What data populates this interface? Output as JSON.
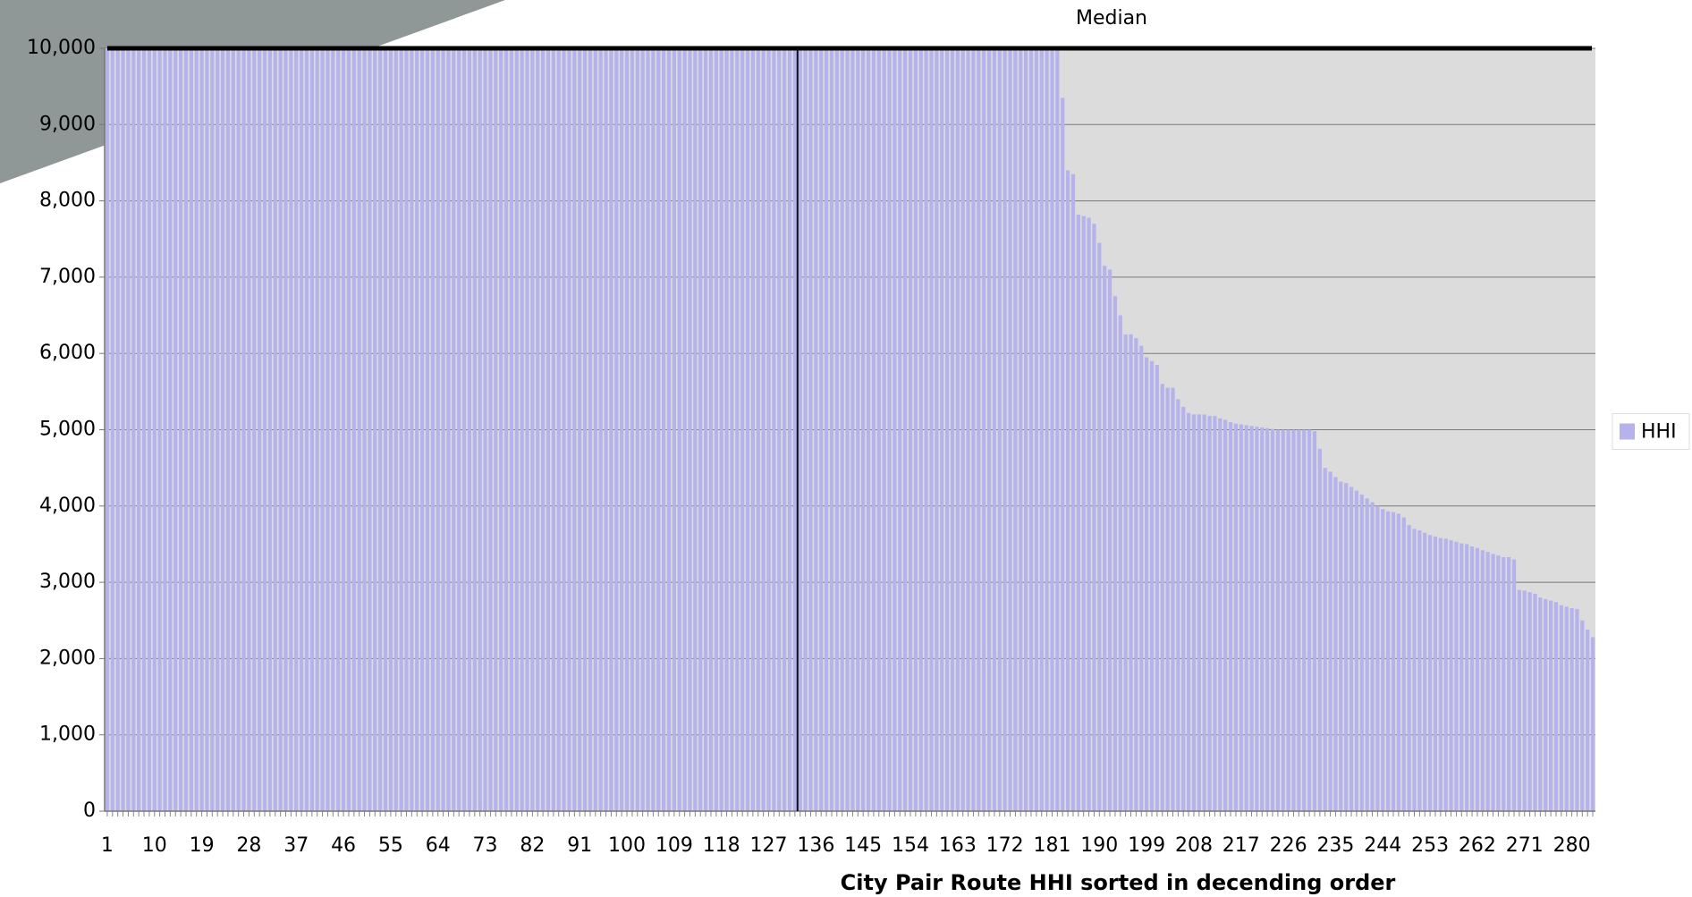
{
  "chart_data": {
    "type": "bar",
    "x_label": "City Pair Route HHI sorted in decending order",
    "categories": [
      1,
      null,
      null,
      null,
      null,
      null,
      null,
      null,
      null,
      10,
      null,
      null,
      null,
      null,
      null,
      null,
      null,
      null,
      19,
      null,
      null,
      null,
      null,
      null,
      null,
      null,
      null,
      28,
      null,
      null,
      null,
      null,
      null,
      null,
      null,
      null,
      37,
      null,
      null,
      null,
      null,
      null,
      null,
      null,
      null,
      46,
      null,
      null,
      null,
      null,
      null,
      null,
      null,
      null,
      55,
      null,
      null,
      null,
      null,
      null,
      null,
      null,
      null,
      64,
      null,
      null,
      null,
      null,
      null,
      null,
      null,
      null,
      73,
      null,
      null,
      null,
      null,
      null,
      null,
      null,
      null,
      82,
      null,
      null,
      null,
      null,
      null,
      null,
      null,
      null,
      91,
      null,
      null,
      null,
      null,
      null,
      null,
      null,
      null,
      100,
      null,
      null,
      null,
      null,
      null,
      null,
      null,
      null,
      109,
      null,
      null,
      null,
      null,
      null,
      null,
      null,
      null,
      118,
      null,
      null,
      null,
      null,
      null,
      null,
      null,
      null,
      127,
      null,
      null,
      null,
      null,
      null,
      null,
      null,
      null,
      136,
      null,
      null,
      null,
      null,
      null,
      null,
      null,
      null,
      145,
      null,
      null,
      null,
      null,
      null,
      null,
      null,
      null,
      154,
      null,
      null,
      null,
      null,
      null,
      null,
      null,
      null,
      163,
      null,
      null,
      null,
      null,
      null,
      null,
      null,
      null,
      172,
      null,
      null,
      null,
      null,
      null,
      null,
      null,
      null,
      181,
      null,
      null,
      null,
      null,
      null,
      null,
      null,
      null,
      190,
      null,
      null,
      null,
      null,
      null,
      null,
      null,
      null,
      199,
      null,
      null,
      null,
      null,
      null,
      null,
      null,
      null,
      208,
      null,
      null,
      null,
      null,
      null,
      null,
      null,
      null,
      217,
      null,
      null,
      null,
      null,
      null,
      null,
      null,
      null,
      226,
      null,
      null,
      null,
      null,
      null,
      null,
      null,
      null,
      235,
      null,
      null,
      null,
      null,
      null,
      null,
      null,
      null,
      244,
      null,
      null,
      null,
      null,
      null,
      null,
      null,
      null,
      253,
      null,
      null,
      null,
      null,
      null,
      null,
      null,
      null,
      262,
      null,
      null,
      null,
      null,
      null,
      null,
      null,
      null,
      271,
      null,
      null,
      null,
      null,
      null,
      null,
      null,
      null,
      280,
      null,
      null,
      null,
      null
    ],
    "series": [
      {
        "name": "HHI",
        "color": "#b5b2ec",
        "values": [
          10000,
          10000,
          10000,
          10000,
          10000,
          10000,
          10000,
          10000,
          10000,
          10000,
          10000,
          10000,
          10000,
          10000,
          10000,
          10000,
          10000,
          10000,
          10000,
          10000,
          10000,
          10000,
          10000,
          10000,
          10000,
          10000,
          10000,
          10000,
          10000,
          10000,
          10000,
          10000,
          10000,
          10000,
          10000,
          10000,
          10000,
          10000,
          10000,
          10000,
          10000,
          10000,
          10000,
          10000,
          10000,
          10000,
          10000,
          10000,
          10000,
          10000,
          10000,
          10000,
          10000,
          10000,
          10000,
          10000,
          10000,
          10000,
          10000,
          10000,
          10000,
          10000,
          10000,
          10000,
          10000,
          10000,
          10000,
          10000,
          10000,
          10000,
          10000,
          10000,
          10000,
          10000,
          10000,
          10000,
          10000,
          10000,
          10000,
          10000,
          10000,
          10000,
          10000,
          10000,
          10000,
          10000,
          10000,
          10000,
          10000,
          10000,
          10000,
          10000,
          10000,
          10000,
          10000,
          10000,
          10000,
          10000,
          10000,
          10000,
          10000,
          10000,
          10000,
          10000,
          10000,
          10000,
          10000,
          10000,
          10000,
          10000,
          10000,
          10000,
          10000,
          10000,
          10000,
          10000,
          10000,
          10000,
          10000,
          10000,
          10000,
          10000,
          10000,
          10000,
          10000,
          10000,
          10000,
          10000,
          10000,
          10000,
          10000,
          10000,
          10000,
          10000,
          10000,
          10000,
          10000,
          10000,
          10000,
          10000,
          10000,
          10000,
          10000,
          10000,
          10000,
          10000,
          10000,
          10000,
          10000,
          10000,
          10000,
          10000,
          10000,
          10000,
          10000,
          10000,
          10000,
          10000,
          10000,
          10000,
          10000,
          10000,
          10000,
          10000,
          10000,
          10000,
          10000,
          10000,
          10000,
          10000,
          10000,
          10000,
          10000,
          10000,
          10000,
          10000,
          10000,
          10000,
          10000,
          10000,
          10000,
          10000,
          9350,
          8400,
          8350,
          7820,
          7800,
          7780,
          7700,
          7450,
          7150,
          7100,
          6750,
          6500,
          6250,
          6250,
          6200,
          6100,
          5950,
          5900,
          5850,
          5600,
          5550,
          5550,
          5400,
          5300,
          5220,
          5200,
          5200,
          5200,
          5180,
          5180,
          5150,
          5130,
          5100,
          5080,
          5070,
          5060,
          5050,
          5040,
          5030,
          5020,
          5010,
          5000,
          5000,
          5000,
          5000,
          5000,
          5000,
          5000,
          4980,
          4750,
          4500,
          4450,
          4380,
          4320,
          4300,
          4250,
          4200,
          4150,
          4100,
          4050,
          4000,
          3960,
          3930,
          3920,
          3900,
          3850,
          3750,
          3700,
          3680,
          3650,
          3620,
          3600,
          3580,
          3570,
          3550,
          3530,
          3510,
          3500,
          3470,
          3450,
          3420,
          3400,
          3370,
          3350,
          3330,
          3330,
          3300,
          2900,
          2890,
          2870,
          2850,
          2800,
          2780,
          2760,
          2740,
          2700,
          2680,
          2660,
          2650,
          2500,
          2380,
          2280
        ]
      }
    ],
    "median_line": {
      "label": "Median",
      "x": 132.5
    },
    "ylim": [
      0,
      10000
    ],
    "yticks": [
      0,
      {
        "value": 1000,
        "label": "1,000"
      },
      {
        "value": 2000,
        "label": "2,000"
      },
      {
        "value": 3000,
        "label": "3,000"
      },
      {
        "value": 4000,
        "label": "4,000"
      },
      {
        "value": 5000,
        "label": "5,000"
      },
      {
        "value": 6000,
        "label": "6,000"
      },
      {
        "value": 7000,
        "label": "7,000"
      },
      {
        "value": 8000,
        "label": "8,000"
      },
      {
        "value": 9000,
        "label": "9,000"
      },
      {
        "value": 10000,
        "label": "10,000"
      }
    ],
    "grid": true,
    "legend": "right",
    "plot_background": "#dcdcdc"
  }
}
